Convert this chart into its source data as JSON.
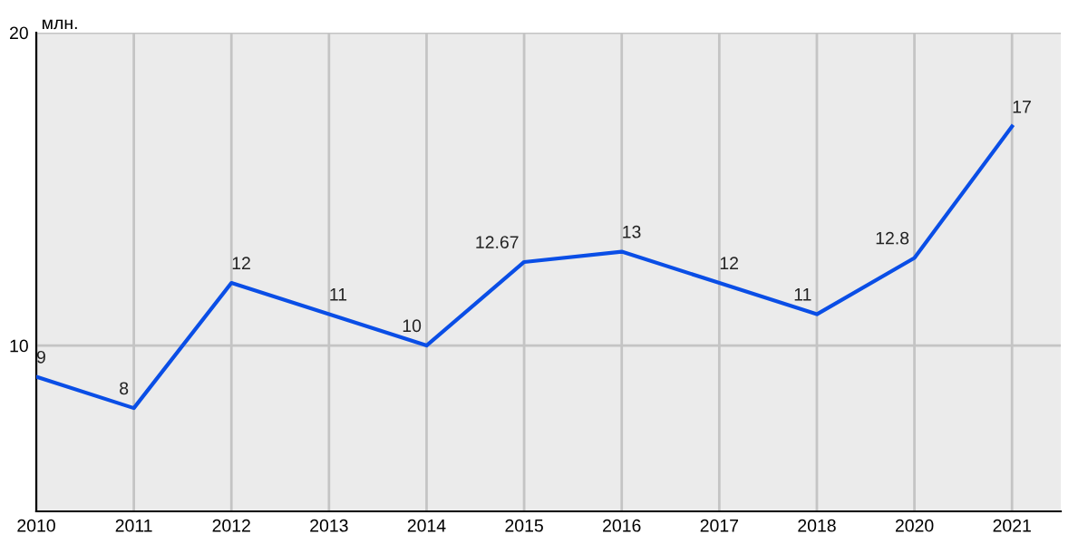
{
  "chart_data": {
    "type": "line",
    "ylabel": "млн.",
    "categories": [
      "2010",
      "2011",
      "2012",
      "2013",
      "2014",
      "2015",
      "2016",
      "2017",
      "2018",
      "2020",
      "2021"
    ],
    "series": [
      {
        "color": "#0a4ee6",
        "values": [
          9,
          8,
          12,
          11,
          10,
          12.67,
          13,
          12,
          11,
          12.8,
          17
        ]
      }
    ],
    "data_labels": true,
    "ylim": [
      4.7,
      20
    ],
    "yticks": [
      10,
      20
    ],
    "grid": true,
    "marker": "none",
    "line_style": "solid",
    "legend": false
  }
}
